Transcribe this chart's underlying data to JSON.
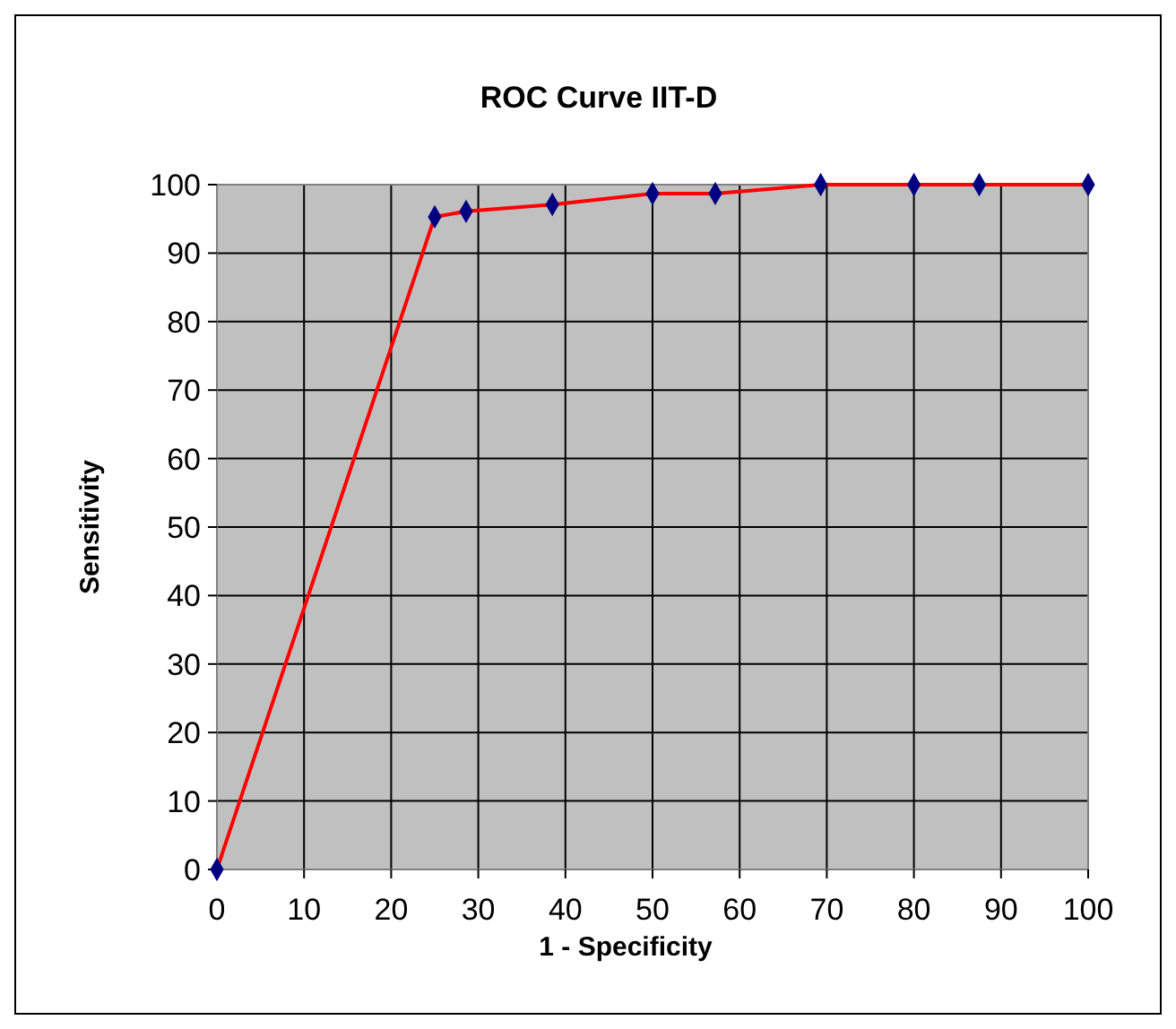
{
  "chart_data": {
    "type": "line",
    "title": "ROC Curve IIT-D",
    "xlabel": "1 - Specificity",
    "ylabel": "Sensitivity",
    "x": [
      0,
      25,
      28.6,
      38.5,
      50,
      57.2,
      69.3,
      80,
      87.5,
      100
    ],
    "series": [
      {
        "color": "#ff0000",
        "colors": [
          "#000080",
          "#000080",
          "#000080",
          "#000080",
          "#000080",
          "#000080",
          "#000080",
          "#000080",
          "#000080",
          "#000080"
        ],
        "values": [
          0,
          95.3,
          96.1,
          97.1,
          98.7,
          98.7,
          100,
          100,
          100,
          100
        ]
      }
    ],
    "xlim": [
      0,
      100
    ],
    "xticks": [
      0,
      10,
      20,
      30,
      40,
      50,
      60,
      70,
      80,
      90,
      100
    ],
    "ylim": [
      0,
      100
    ],
    "yticks": [
      0,
      10,
      20,
      30,
      40,
      50,
      60,
      70,
      80,
      90,
      100
    ],
    "grid": true,
    "marker": "diamond",
    "line_style": "solid"
  }
}
